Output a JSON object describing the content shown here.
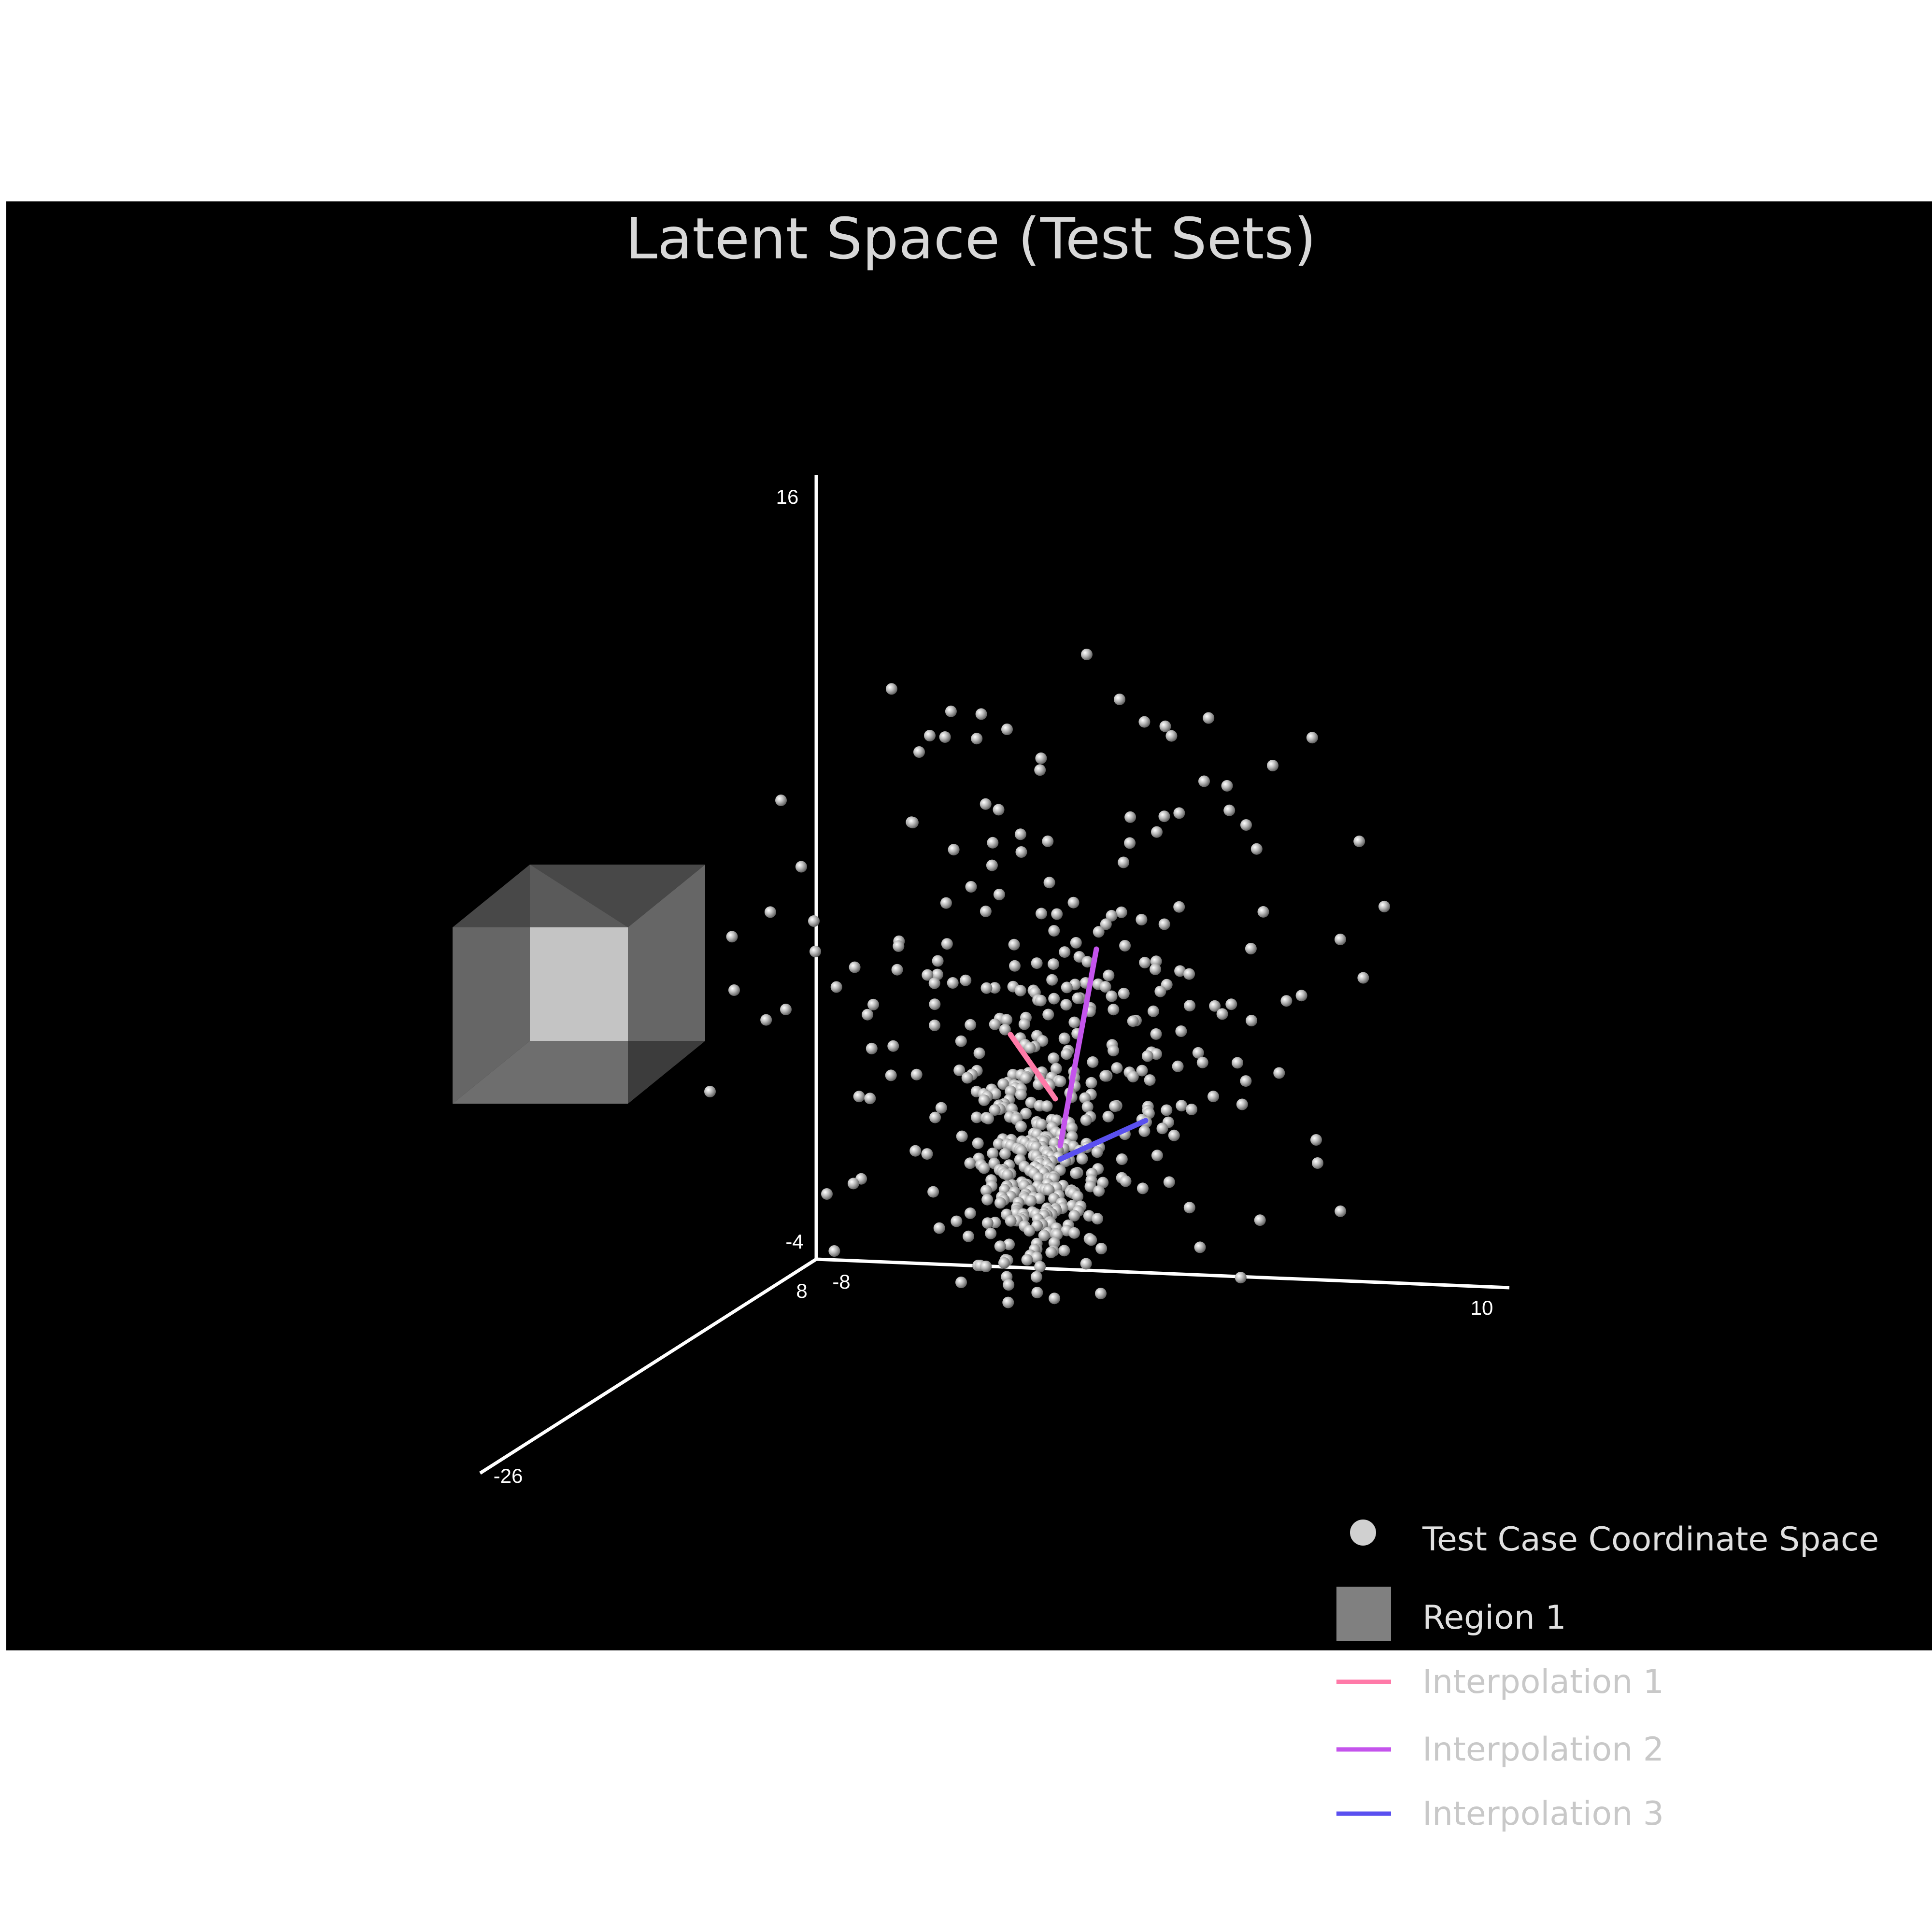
{
  "chart_data": {
    "type": "scatter",
    "title": "Latent Space (Test Sets)",
    "axes": {
      "x": {
        "range": [
          -8,
          10
        ],
        "tick_labels": [
          "-8",
          "10"
        ]
      },
      "y": {
        "range": [
          8,
          -26
        ],
        "tick_labels": [
          "8",
          "-26"
        ]
      },
      "z": {
        "range": [
          -4,
          16
        ],
        "tick_labels": [
          "-4",
          "16"
        ]
      }
    },
    "legend": {
      "placement": "bottom-right",
      "entries": [
        {
          "label": "Test Case Coordinate Space",
          "symbol": "sphere",
          "color": "#d0d0d0",
          "active": true
        },
        {
          "label": "Region 1",
          "symbol": "cube",
          "color": "#808080",
          "active": true
        },
        {
          "label": "Interpolation 1",
          "symbol": "line",
          "color": "#ff7aa8",
          "active": false
        },
        {
          "label": "Interpolation 2",
          "symbol": "line",
          "color": "#c454ec",
          "active": false
        },
        {
          "label": "Interpolation 3",
          "symbol": "line",
          "color": "#5a50f0",
          "active": false
        }
      ]
    },
    "point_count": 520,
    "background": "#000000"
  }
}
